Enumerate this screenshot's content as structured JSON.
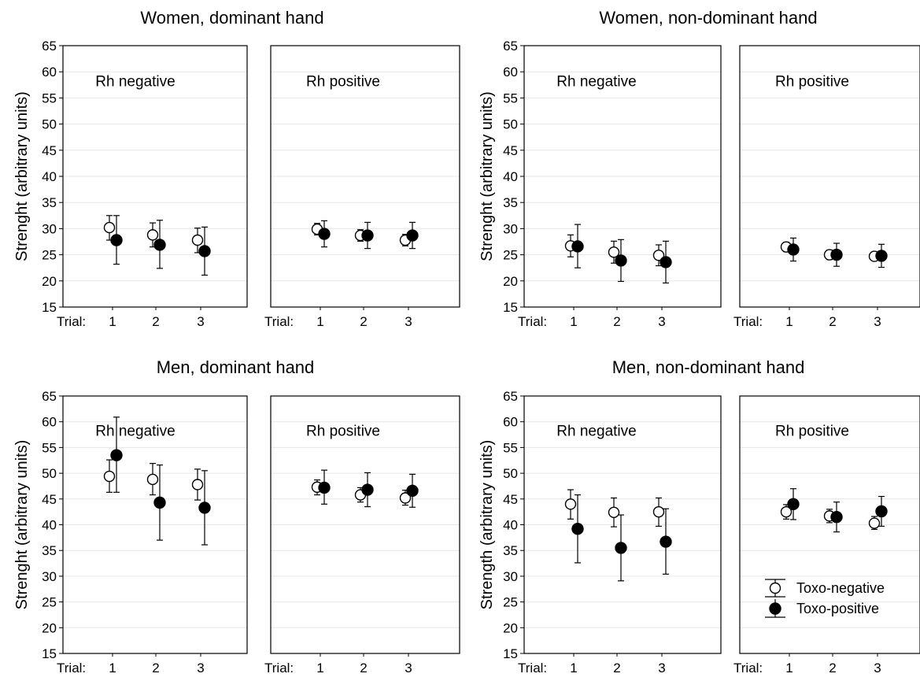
{
  "chart_data": [
    {
      "type": "scatter",
      "title": "Women, dominant hand",
      "ylabel": "Strenght (arbitrary units)",
      "ylim": [
        15,
        65
      ],
      "yticks": [
        15,
        20,
        25,
        30,
        35,
        40,
        45,
        50,
        55,
        60,
        65
      ],
      "x_prefix": "Trial:",
      "categories": [
        "1",
        "2",
        "3"
      ],
      "grid": true,
      "panels": [
        {
          "label": "Rh negative",
          "series": [
            {
              "values": [
                30.2,
                28.8,
                27.8
              ],
              "err_low": [
                27.8,
                26.5,
                25.4
              ],
              "err_high": [
                32.5,
                31.1,
                30.1
              ]
            },
            {
              "values": [
                27.8,
                26.9,
                25.7
              ],
              "err_low": [
                23.2,
                22.4,
                21.1
              ],
              "err_high": [
                32.5,
                31.6,
                30.3
              ]
            }
          ]
        },
        {
          "label": "Rh positive",
          "series": [
            {
              "values": [
                29.9,
                28.7,
                27.8
              ],
              "err_low": [
                28.8,
                27.6,
                26.7
              ],
              "err_high": [
                31.0,
                29.8,
                28.9
              ]
            },
            {
              "values": [
                29.0,
                28.7,
                28.7
              ],
              "err_low": [
                26.5,
                26.2,
                26.2
              ],
              "err_high": [
                31.5,
                31.2,
                31.2
              ]
            }
          ]
        }
      ]
    },
    {
      "type": "scatter",
      "title": "Women, non-dominant hand",
      "ylabel": "Strenght (arbitrary units)",
      "ylim": [
        15,
        65
      ],
      "yticks": [
        15,
        20,
        25,
        30,
        35,
        40,
        45,
        50,
        55,
        60,
        65
      ],
      "x_prefix": "Trial:",
      "categories": [
        "1",
        "2",
        "3"
      ],
      "grid": true,
      "panels": [
        {
          "label": "Rh negative",
          "series": [
            {
              "values": [
                26.7,
                25.5,
                24.9
              ],
              "err_low": [
                24.6,
                23.4,
                22.9
              ],
              "err_high": [
                28.8,
                27.6,
                26.9
              ]
            },
            {
              "values": [
                26.6,
                23.9,
                23.6
              ],
              "err_low": [
                22.5,
                19.9,
                19.6
              ],
              "err_high": [
                30.8,
                27.9,
                27.6
              ]
            }
          ]
        },
        {
          "label": "Rh positive",
          "series": [
            {
              "values": [
                26.5,
                25.0,
                24.7
              ],
              "err_low": [
                25.6,
                24.1,
                23.9
              ],
              "err_high": [
                27.4,
                25.9,
                25.5
              ]
            },
            {
              "values": [
                26.0,
                25.0,
                24.8
              ],
              "err_low": [
                23.8,
                22.8,
                22.6
              ],
              "err_high": [
                28.2,
                27.2,
                27.0
              ]
            }
          ]
        }
      ]
    },
    {
      "type": "scatter",
      "title": "Men, dominant hand",
      "ylabel": "Strenght (arbitrary units)",
      "ylim": [
        15,
        65
      ],
      "yticks": [
        15,
        20,
        25,
        30,
        35,
        40,
        45,
        50,
        55,
        60,
        65
      ],
      "x_prefix": "Trial:",
      "categories": [
        "1",
        "2",
        "3"
      ],
      "grid": true,
      "panels": [
        {
          "label": "Rh negative",
          "series": [
            {
              "values": [
                49.4,
                48.8,
                47.8
              ],
              "err_low": [
                46.3,
                45.8,
                44.8
              ],
              "err_high": [
                52.6,
                51.9,
                50.8
              ]
            },
            {
              "values": [
                53.5,
                44.3,
                43.3
              ],
              "err_low": [
                46.3,
                37.0,
                36.1
              ],
              "err_high": [
                60.9,
                51.6,
                50.5
              ]
            }
          ]
        },
        {
          "label": "Rh positive",
          "series": [
            {
              "values": [
                47.3,
                45.8,
                45.2
              ],
              "err_low": [
                45.8,
                44.4,
                43.8
              ],
              "err_high": [
                48.7,
                47.2,
                46.7
              ]
            },
            {
              "values": [
                47.2,
                46.8,
                46.6
              ],
              "err_low": [
                44.0,
                43.5,
                43.4
              ],
              "err_high": [
                50.6,
                50.1,
                49.8
              ]
            }
          ]
        }
      ]
    },
    {
      "type": "scatter",
      "title": "Men, non-dominant hand",
      "ylabel": "Strength (arbitrary units)",
      "ylim": [
        15,
        65
      ],
      "yticks": [
        15,
        20,
        25,
        30,
        35,
        40,
        45,
        50,
        55,
        60,
        65
      ],
      "x_prefix": "Trial:",
      "categories": [
        "1",
        "2",
        "3"
      ],
      "grid": true,
      "legend": [
        "Toxo-negative",
        "Toxo-positive"
      ],
      "legend_position": "lower-right",
      "panels": [
        {
          "label": "Rh negative",
          "series": [
            {
              "values": [
                44.0,
                42.4,
                42.5
              ],
              "err_low": [
                41.1,
                39.6,
                39.7
              ],
              "err_high": [
                46.8,
                45.2,
                45.2
              ]
            },
            {
              "values": [
                39.2,
                35.5,
                36.7
              ],
              "err_low": [
                32.6,
                29.1,
                30.4
              ],
              "err_high": [
                45.8,
                41.9,
                43.1
              ]
            }
          ]
        },
        {
          "label": "Rh positive",
          "series": [
            {
              "values": [
                42.5,
                41.7,
                40.3
              ],
              "err_low": [
                41.1,
                40.4,
                39.1
              ],
              "err_high": [
                43.9,
                43.0,
                41.6
              ]
            },
            {
              "values": [
                44.0,
                41.5,
                42.6
              ],
              "err_low": [
                41.0,
                38.6,
                39.7
              ],
              "err_high": [
                47.0,
                44.4,
                45.5
              ]
            }
          ]
        }
      ]
    }
  ]
}
